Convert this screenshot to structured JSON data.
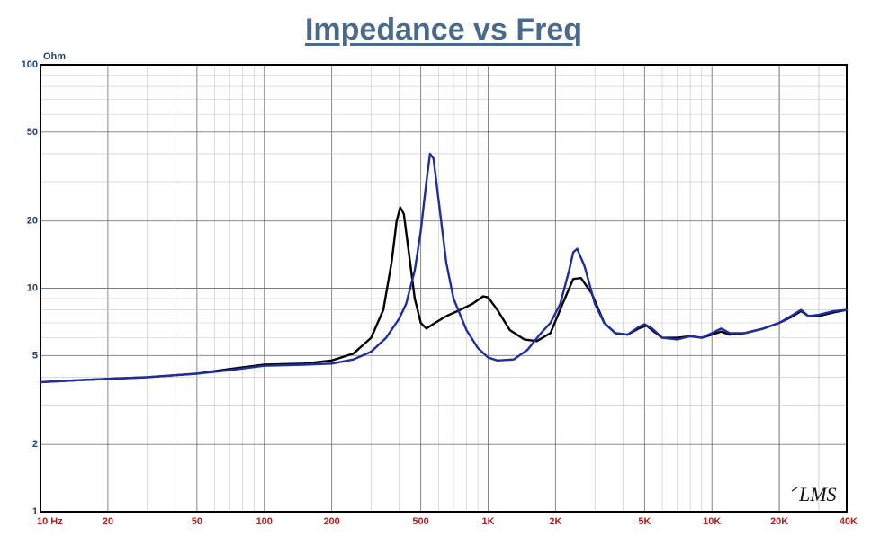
{
  "chart_data": {
    "type": "line",
    "title": "Impedance vs Freq",
    "y_unit_label": "Ohm",
    "x_scale": "log",
    "y_scale": "log",
    "xlim": [
      10,
      40000
    ],
    "ylim": [
      1,
      100
    ],
    "grid": true,
    "x_tick_values": [
      10,
      20,
      50,
      100,
      200,
      500,
      1000,
      2000,
      5000,
      10000,
      20000,
      40000
    ],
    "x_tick_labels": [
      "10  Hz",
      "20",
      "50",
      "100",
      "200",
      "500",
      "1K",
      "2K",
      "5K",
      "10K",
      "20K",
      "40K"
    ],
    "y_tick_values": [
      1,
      2,
      5,
      10,
      20,
      50,
      100
    ],
    "y_tick_labels": [
      "1",
      "2",
      "5",
      "10",
      "20",
      "50",
      "100"
    ],
    "logo_text": "LMS",
    "series": [
      {
        "color": "#000000",
        "points": [
          [
            10,
            3.8
          ],
          [
            15,
            3.88
          ],
          [
            20,
            3.93
          ],
          [
            30,
            4.0
          ],
          [
            50,
            4.15
          ],
          [
            70,
            4.35
          ],
          [
            100,
            4.55
          ],
          [
            150,
            4.6
          ],
          [
            200,
            4.75
          ],
          [
            250,
            5.1
          ],
          [
            300,
            6.0
          ],
          [
            340,
            8.0
          ],
          [
            370,
            13.0
          ],
          [
            390,
            20.0
          ],
          [
            405,
            23.0
          ],
          [
            420,
            21.5
          ],
          [
            440,
            15.0
          ],
          [
            470,
            9.0
          ],
          [
            500,
            7.0
          ],
          [
            530,
            6.6
          ],
          [
            580,
            7.0
          ],
          [
            650,
            7.5
          ],
          [
            750,
            8.0
          ],
          [
            850,
            8.5
          ],
          [
            950,
            9.2
          ],
          [
            1000,
            9.1
          ],
          [
            1100,
            8.0
          ],
          [
            1250,
            6.5
          ],
          [
            1450,
            5.9
          ],
          [
            1650,
            5.8
          ],
          [
            1900,
            6.3
          ],
          [
            2150,
            8.5
          ],
          [
            2400,
            11.0
          ],
          [
            2600,
            11.1
          ],
          [
            2900,
            9.5
          ],
          [
            3300,
            7.0
          ],
          [
            3700,
            6.3
          ],
          [
            4200,
            6.2
          ],
          [
            4700,
            6.6
          ],
          [
            5100,
            6.8
          ],
          [
            5500,
            6.4
          ],
          [
            6000,
            6.0
          ],
          [
            7000,
            6.0
          ],
          [
            8000,
            6.1
          ],
          [
            9000,
            6.0
          ],
          [
            10000,
            6.2
          ],
          [
            11000,
            6.4
          ],
          [
            12000,
            6.2
          ],
          [
            14000,
            6.3
          ],
          [
            17000,
            6.6
          ],
          [
            20000,
            7.0
          ],
          [
            23000,
            7.5
          ],
          [
            25000,
            7.9
          ],
          [
            27000,
            7.5
          ],
          [
            30000,
            7.5
          ],
          [
            35000,
            7.8
          ],
          [
            40000,
            8.0
          ]
        ]
      },
      {
        "color": "#1c2ea0",
        "points": [
          [
            10,
            3.8
          ],
          [
            15,
            3.88
          ],
          [
            20,
            3.93
          ],
          [
            30,
            4.0
          ],
          [
            50,
            4.15
          ],
          [
            70,
            4.3
          ],
          [
            100,
            4.5
          ],
          [
            150,
            4.55
          ],
          [
            200,
            4.6
          ],
          [
            250,
            4.8
          ],
          [
            300,
            5.2
          ],
          [
            350,
            6.0
          ],
          [
            400,
            7.3
          ],
          [
            430,
            8.5
          ],
          [
            470,
            12.0
          ],
          [
            500,
            18.0
          ],
          [
            530,
            30.0
          ],
          [
            550,
            40.0
          ],
          [
            570,
            38.0
          ],
          [
            600,
            25.0
          ],
          [
            650,
            13.0
          ],
          [
            700,
            9.0
          ],
          [
            800,
            6.5
          ],
          [
            900,
            5.4
          ],
          [
            1000,
            4.9
          ],
          [
            1100,
            4.75
          ],
          [
            1300,
            4.8
          ],
          [
            1500,
            5.3
          ],
          [
            1700,
            6.2
          ],
          [
            1900,
            7.0
          ],
          [
            2100,
            8.5
          ],
          [
            2300,
            12.0
          ],
          [
            2400,
            14.5
          ],
          [
            2500,
            15.0
          ],
          [
            2700,
            12.5
          ],
          [
            3000,
            8.5
          ],
          [
            3300,
            7.0
          ],
          [
            3700,
            6.3
          ],
          [
            4200,
            6.2
          ],
          [
            4700,
            6.7
          ],
          [
            5000,
            6.9
          ],
          [
            5400,
            6.6
          ],
          [
            6000,
            6.0
          ],
          [
            7000,
            5.9
          ],
          [
            8000,
            6.1
          ],
          [
            9000,
            6.0
          ],
          [
            10000,
            6.3
          ],
          [
            11000,
            6.6
          ],
          [
            12000,
            6.3
          ],
          [
            14000,
            6.3
          ],
          [
            17000,
            6.6
          ],
          [
            20000,
            7.0
          ],
          [
            23000,
            7.6
          ],
          [
            25000,
            8.0
          ],
          [
            27000,
            7.5
          ],
          [
            30000,
            7.6
          ],
          [
            35000,
            7.9
          ],
          [
            40000,
            8.0
          ]
        ]
      }
    ]
  }
}
